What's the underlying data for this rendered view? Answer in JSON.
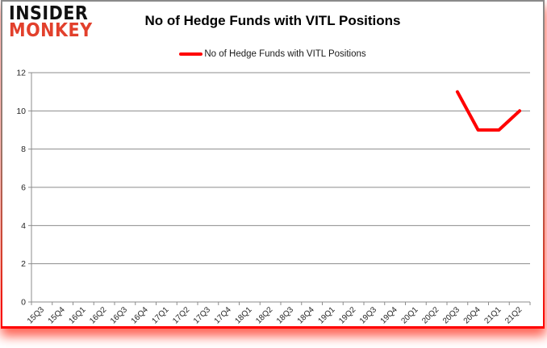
{
  "logo": {
    "line1": "INSIDER",
    "line2": "MONKEY"
  },
  "header": {
    "title": "No of Hedge Funds with VITL Positions"
  },
  "legend": {
    "label": "No of Hedge Funds with VITL Positions",
    "color": "#ff0000"
  },
  "chart_data": {
    "type": "line",
    "title": "No of Hedge Funds with VITL Positions",
    "categories": [
      "15Q3",
      "15Q4",
      "16Q1",
      "16Q2",
      "16Q3",
      "16Q4",
      "17Q1",
      "17Q2",
      "17Q3",
      "17Q4",
      "18Q1",
      "18Q2",
      "18Q3",
      "18Q4",
      "19Q1",
      "19Q2",
      "19Q3",
      "19Q4",
      "20Q1",
      "20Q2",
      "20Q3",
      "20Q4",
      "21Q1",
      "21Q2"
    ],
    "series": [
      {
        "name": "No of Hedge Funds with VITL Positions",
        "color": "#ff0000",
        "values": [
          null,
          null,
          null,
          null,
          null,
          null,
          null,
          null,
          null,
          null,
          null,
          null,
          null,
          null,
          null,
          null,
          null,
          null,
          null,
          null,
          11,
          9,
          9,
          10
        ]
      }
    ],
    "xlabel": "",
    "ylabel": "",
    "ylim": [
      0,
      12
    ],
    "y_step": 2,
    "y_tick_labels": [
      "0",
      "2",
      "4",
      "6",
      "8",
      "10",
      "12"
    ],
    "grid": true,
    "legend_position": "top-center",
    "gridline_color": "#8c8c8c",
    "axis_color": "#8c8c8c",
    "tick_label_color": "#262626"
  },
  "colors": {
    "brand_red": "#e2402c",
    "line_red": "#ff0000",
    "frame_top": "#8a8a8a",
    "frame_bottom": "#ff0000"
  }
}
